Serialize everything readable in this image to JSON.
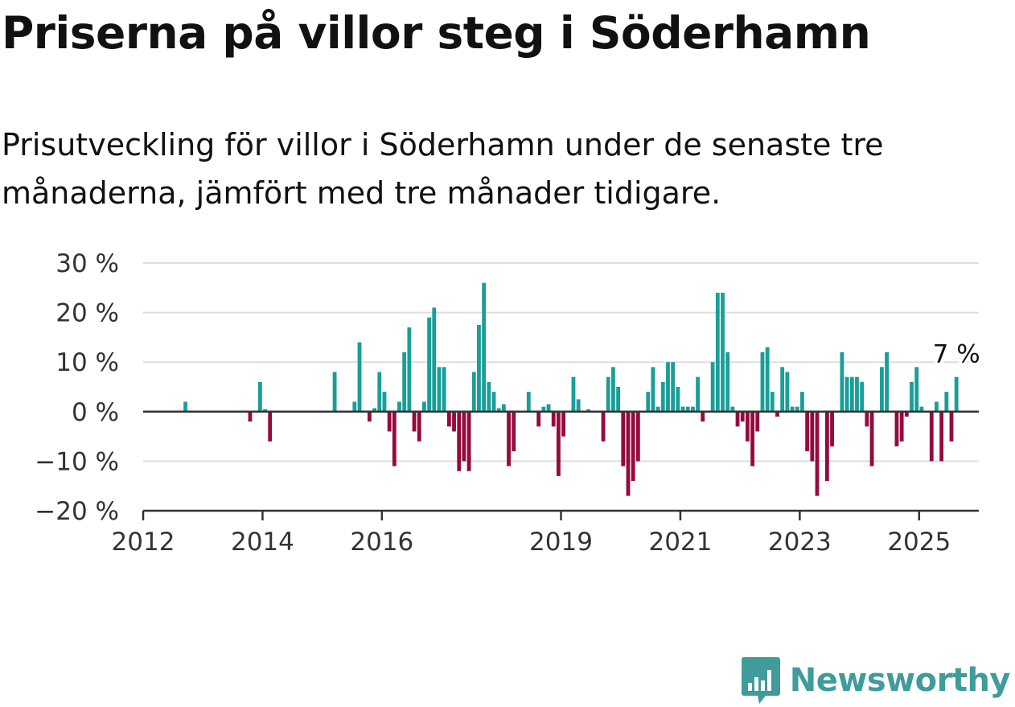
{
  "title": "Priserna på villor steg i Söderhamn",
  "subtitle": "Prisutveckling för villor i Söderhamn under de senaste tre månaderna, jämfört med tre månader tidigare.",
  "brand": {
    "name": "Newsworthy",
    "icon": "bar-chart-speech-bubble-icon",
    "color": "#3f9c9a"
  },
  "colors": {
    "positive": "#199e98",
    "negative": "#950a3e",
    "grid": "#dddddd",
    "axis": "#333333"
  },
  "chart_data": {
    "type": "bar",
    "title": "Priserna på villor steg i Söderhamn",
    "xlabel": "",
    "ylabel": "",
    "ylim": [
      -20,
      30
    ],
    "yticks": [
      {
        "value": 30,
        "label": "30 %"
      },
      {
        "value": 20,
        "label": "20 %"
      },
      {
        "value": 10,
        "label": "10 %"
      },
      {
        "value": 0,
        "label": "0 %"
      },
      {
        "value": -10,
        "label": "−10 %"
      },
      {
        "value": -20,
        "label": "−20 %"
      }
    ],
    "xlim": [
      2012.0,
      2026.0
    ],
    "xticks": [
      {
        "value": 2012,
        "label": "2012"
      },
      {
        "value": 2014,
        "label": "2014"
      },
      {
        "value": 2016,
        "label": "2016"
      },
      {
        "value": 2019,
        "label": "2019"
      },
      {
        "value": 2021,
        "label": "2021"
      },
      {
        "value": 2023,
        "label": "2023"
      },
      {
        "value": 2025,
        "label": "2025"
      }
    ],
    "grid": true,
    "bar_period": "month",
    "last_value_label": "7 %",
    "bars": [
      [
        "2012-09",
        2
      ],
      [
        "2013-10",
        -2
      ],
      [
        "2013-12",
        6
      ],
      [
        "2014-01",
        0.5
      ],
      [
        "2014-02",
        -6
      ],
      [
        "2015-03",
        8
      ],
      [
        "2015-07",
        2
      ],
      [
        "2015-08",
        14
      ],
      [
        "2015-10",
        -2
      ],
      [
        "2015-11",
        0.7
      ],
      [
        "2015-12",
        8
      ],
      [
        "2016-01",
        4
      ],
      [
        "2016-02",
        -4
      ],
      [
        "2016-03",
        -11
      ],
      [
        "2016-04",
        2
      ],
      [
        "2016-05",
        12
      ],
      [
        "2016-06",
        17
      ],
      [
        "2016-07",
        -4
      ],
      [
        "2016-08",
        -6
      ],
      [
        "2016-09",
        2
      ],
      [
        "2016-10",
        19
      ],
      [
        "2016-11",
        21
      ],
      [
        "2016-12",
        9
      ],
      [
        "2017-01",
        9
      ],
      [
        "2017-02",
        -3
      ],
      [
        "2017-03",
        -4
      ],
      [
        "2017-04",
        -12
      ],
      [
        "2017-05",
        -10
      ],
      [
        "2017-06",
        -12
      ],
      [
        "2017-07",
        8
      ],
      [
        "2017-08",
        17.5
      ],
      [
        "2017-09",
        26
      ],
      [
        "2017-10",
        6
      ],
      [
        "2017-11",
        4
      ],
      [
        "2017-12",
        0.7
      ],
      [
        "2018-01",
        1.5
      ],
      [
        "2018-02",
        -11
      ],
      [
        "2018-03",
        -8
      ],
      [
        "2018-06",
        4
      ],
      [
        "2018-08",
        -3
      ],
      [
        "2018-09",
        1
      ],
      [
        "2018-10",
        1.5
      ],
      [
        "2018-11",
        -3
      ],
      [
        "2018-12",
        -13
      ],
      [
        "2019-01",
        -5
      ],
      [
        "2019-03",
        7
      ],
      [
        "2019-04",
        2.5
      ],
      [
        "2019-06",
        0.5
      ],
      [
        "2019-09",
        -6
      ],
      [
        "2019-10",
        7
      ],
      [
        "2019-11",
        9
      ],
      [
        "2019-12",
        5
      ],
      [
        "2020-01",
        -11
      ],
      [
        "2020-02",
        -17
      ],
      [
        "2020-03",
        -14
      ],
      [
        "2020-04",
        -10
      ],
      [
        "2020-06",
        4
      ],
      [
        "2020-07",
        9
      ],
      [
        "2020-08",
        1
      ],
      [
        "2020-09",
        6
      ],
      [
        "2020-10",
        10
      ],
      [
        "2020-11",
        10
      ],
      [
        "2020-12",
        5
      ],
      [
        "2021-01",
        1
      ],
      [
        "2021-02",
        1
      ],
      [
        "2021-03",
        1
      ],
      [
        "2021-04",
        7
      ],
      [
        "2021-05",
        -2
      ],
      [
        "2021-07",
        10
      ],
      [
        "2021-08",
        24
      ],
      [
        "2021-09",
        24
      ],
      [
        "2021-10",
        12
      ],
      [
        "2021-11",
        1
      ],
      [
        "2021-12",
        -3
      ],
      [
        "2022-01",
        -2
      ],
      [
        "2022-02",
        -6
      ],
      [
        "2022-03",
        -11
      ],
      [
        "2022-04",
        -4
      ],
      [
        "2022-05",
        12
      ],
      [
        "2022-06",
        13
      ],
      [
        "2022-07",
        4
      ],
      [
        "2022-08",
        -1
      ],
      [
        "2022-09",
        9
      ],
      [
        "2022-10",
        8
      ],
      [
        "2022-11",
        1
      ],
      [
        "2022-12",
        1
      ],
      [
        "2023-01",
        4
      ],
      [
        "2023-02",
        -8
      ],
      [
        "2023-03",
        -10
      ],
      [
        "2023-04",
        -17
      ],
      [
        "2023-06",
        -14
      ],
      [
        "2023-07",
        -7
      ],
      [
        "2023-09",
        12
      ],
      [
        "2023-10",
        7
      ],
      [
        "2023-11",
        7
      ],
      [
        "2023-12",
        7
      ],
      [
        "2024-01",
        6
      ],
      [
        "2024-02",
        -3
      ],
      [
        "2024-03",
        -11
      ],
      [
        "2024-05",
        9
      ],
      [
        "2024-06",
        12
      ],
      [
        "2024-08",
        -7
      ],
      [
        "2024-09",
        -6
      ],
      [
        "2024-10",
        -1
      ],
      [
        "2024-11",
        6
      ],
      [
        "2024-12",
        9
      ],
      [
        "2025-01",
        1
      ],
      [
        "2025-03",
        -10
      ],
      [
        "2025-04",
        2
      ],
      [
        "2025-05",
        -10
      ],
      [
        "2025-06",
        4
      ],
      [
        "2025-07",
        -6
      ],
      [
        "2025-08",
        7
      ]
    ]
  }
}
